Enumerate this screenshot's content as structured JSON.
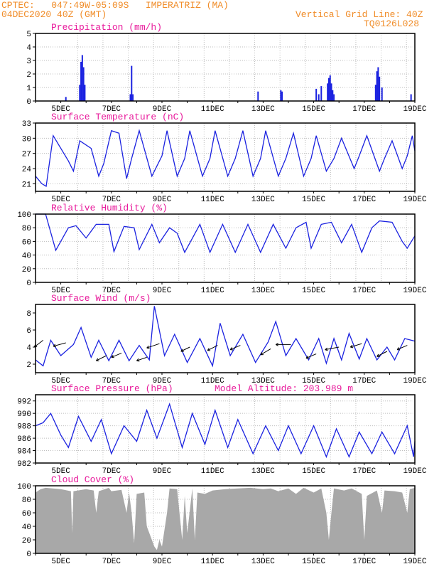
{
  "header": {
    "line1": "CPTEC:   047:49W-05:09S   IMPERATRIZ (MA)",
    "line2": "04DEC2020 40Z (GMT)",
    "grid_note": "Vertical Grid Line: 40Z",
    "code": "TQ0126L028"
  },
  "colors": {
    "header": "#f08c28",
    "title": "#e8199b",
    "series": "#1b22e0",
    "cloud": "#a8a8a8",
    "grid": "#bdbdbd"
  },
  "x_ticks": [
    "5DEC",
    "7DEC",
    "9DEC",
    "11DEC",
    "13DEC",
    "15DEC",
    "17DEC",
    "19DEC"
  ],
  "chart_data": [
    {
      "type": "bar",
      "title": "Precipitation (mm/h)",
      "x_unit": "day of December 2020",
      "xlim": [
        4.0,
        19.0
      ],
      "ylim": [
        0,
        5
      ],
      "yticks": [
        0,
        1,
        2,
        3,
        4,
        5
      ],
      "grid": true,
      "points": [
        [
          5.2,
          0.3
        ],
        [
          5.75,
          1.2
        ],
        [
          5.8,
          2.9
        ],
        [
          5.85,
          3.4
        ],
        [
          5.9,
          2.5
        ],
        [
          5.95,
          1.2
        ],
        [
          7.75,
          0.5
        ],
        [
          7.8,
          2.6
        ],
        [
          7.85,
          0.5
        ],
        [
          12.8,
          0.7
        ],
        [
          13.7,
          0.8
        ],
        [
          13.75,
          0.7
        ],
        [
          15.1,
          0.9
        ],
        [
          15.2,
          0.5
        ],
        [
          15.3,
          1.1
        ],
        [
          15.55,
          1.3
        ],
        [
          15.6,
          1.7
        ],
        [
          15.65,
          1.9
        ],
        [
          15.7,
          1.3
        ],
        [
          15.75,
          0.8
        ],
        [
          15.8,
          0.5
        ],
        [
          17.45,
          1.2
        ],
        [
          17.5,
          2.2
        ],
        [
          17.55,
          2.5
        ],
        [
          17.6,
          1.8
        ],
        [
          17.7,
          1.0
        ],
        [
          18.85,
          0.5
        ]
      ]
    },
    {
      "type": "line",
      "title": "Surface Temperature (nC)",
      "x_unit": "day of December 2020",
      "xlim": [
        4.0,
        19.0
      ],
      "ylim": [
        19.5,
        33
      ],
      "yticks": [
        21,
        24,
        27,
        30,
        33
      ],
      "grid": true,
      "points": [
        [
          4.0,
          22.5
        ],
        [
          4.25,
          21.0
        ],
        [
          4.42,
          20.5
        ],
        [
          4.7,
          30.5
        ],
        [
          5.3,
          25.5
        ],
        [
          5.5,
          23.5
        ],
        [
          5.75,
          29.5
        ],
        [
          6.2,
          28.0
        ],
        [
          6.5,
          22.5
        ],
        [
          6.7,
          25.0
        ],
        [
          7.0,
          31.5
        ],
        [
          7.3,
          31.0
        ],
        [
          7.6,
          22.0
        ],
        [
          7.8,
          26.0
        ],
        [
          8.1,
          31.5
        ],
        [
          8.6,
          22.5
        ],
        [
          9.0,
          26.5
        ],
        [
          9.2,
          31.5
        ],
        [
          9.6,
          22.5
        ],
        [
          9.9,
          26.0
        ],
        [
          10.1,
          31.5
        ],
        [
          10.6,
          22.5
        ],
        [
          10.9,
          26.0
        ],
        [
          11.1,
          31.5
        ],
        [
          11.6,
          22.5
        ],
        [
          11.9,
          26.0
        ],
        [
          12.2,
          31.5
        ],
        [
          12.6,
          22.5
        ],
        [
          12.9,
          26.0
        ],
        [
          13.1,
          31.5
        ],
        [
          13.6,
          22.5
        ],
        [
          13.9,
          26.0
        ],
        [
          14.2,
          31.0
        ],
        [
          14.6,
          22.5
        ],
        [
          14.9,
          26.0
        ],
        [
          15.1,
          30.5
        ],
        [
          15.5,
          23.5
        ],
        [
          15.8,
          26.0
        ],
        [
          16.1,
          30.0
        ],
        [
          16.6,
          24.0
        ],
        [
          16.8,
          26.5
        ],
        [
          17.1,
          30.5
        ],
        [
          17.6,
          23.5
        ],
        [
          17.8,
          26.0
        ],
        [
          18.1,
          29.5
        ],
        [
          18.5,
          24.0
        ],
        [
          18.7,
          26.5
        ],
        [
          18.9,
          30.5
        ],
        [
          19.0,
          27.5
        ]
      ]
    },
    {
      "type": "line",
      "title": "Relative Humidity (%)",
      "x_unit": "day of December 2020",
      "xlim": [
        4.0,
        19.0
      ],
      "ylim": [
        0,
        100
      ],
      "yticks": [
        0,
        20,
        40,
        60,
        80,
        100
      ],
      "grid": true,
      "points": [
        [
          4.0,
          100
        ],
        [
          4.4,
          100
        ],
        [
          4.8,
          47
        ],
        [
          5.3,
          80
        ],
        [
          5.6,
          83
        ],
        [
          6.0,
          65
        ],
        [
          6.4,
          85
        ],
        [
          6.9,
          85
        ],
        [
          7.1,
          45
        ],
        [
          7.5,
          82
        ],
        [
          7.9,
          80
        ],
        [
          8.1,
          48
        ],
        [
          8.6,
          85
        ],
        [
          8.9,
          58
        ],
        [
          9.3,
          80
        ],
        [
          9.6,
          72
        ],
        [
          9.9,
          44
        ],
        [
          10.5,
          85
        ],
        [
          10.9,
          44
        ],
        [
          11.4,
          85
        ],
        [
          11.9,
          44
        ],
        [
          12.4,
          85
        ],
        [
          12.9,
          44
        ],
        [
          13.4,
          85
        ],
        [
          13.9,
          50
        ],
        [
          14.3,
          80
        ],
        [
          14.7,
          88
        ],
        [
          14.9,
          50
        ],
        [
          15.3,
          85
        ],
        [
          15.7,
          88
        ],
        [
          16.1,
          58
        ],
        [
          16.5,
          85
        ],
        [
          16.9,
          44
        ],
        [
          17.3,
          80
        ],
        [
          17.6,
          90
        ],
        [
          18.1,
          88
        ],
        [
          18.5,
          60
        ],
        [
          18.7,
          50
        ],
        [
          19.0,
          68
        ]
      ]
    },
    {
      "type": "line",
      "title": "Surface Wind (m/s)",
      "x_unit": "day of December 2020",
      "xlim": [
        4.0,
        19.0
      ],
      "ylim": [
        1,
        9
      ],
      "yticks": [
        2,
        4,
        6,
        8
      ],
      "grid": false,
      "points": [
        [
          4.0,
          2.5
        ],
        [
          4.3,
          1.8
        ],
        [
          4.6,
          4.8
        ],
        [
          5.0,
          3.0
        ],
        [
          5.5,
          4.3
        ],
        [
          5.8,
          6.3
        ],
        [
          6.2,
          2.8
        ],
        [
          6.5,
          4.8
        ],
        [
          6.9,
          2.4
        ],
        [
          7.3,
          4.8
        ],
        [
          7.7,
          2.4
        ],
        [
          8.1,
          4.2
        ],
        [
          8.5,
          2.5
        ],
        [
          8.7,
          8.8
        ],
        [
          9.1,
          3.0
        ],
        [
          9.5,
          5.5
        ],
        [
          10.0,
          2.2
        ],
        [
          10.5,
          5.0
        ],
        [
          11.0,
          1.8
        ],
        [
          11.3,
          6.8
        ],
        [
          11.7,
          3.0
        ],
        [
          12.2,
          5.5
        ],
        [
          12.7,
          2.2
        ],
        [
          13.2,
          4.6
        ],
        [
          13.5,
          7.0
        ],
        [
          13.9,
          3.0
        ],
        [
          14.3,
          5.0
        ],
        [
          14.8,
          2.5
        ],
        [
          15.2,
          5.0
        ],
        [
          15.5,
          2.1
        ],
        [
          15.8,
          5.0
        ],
        [
          16.1,
          2.5
        ],
        [
          16.4,
          5.6
        ],
        [
          16.8,
          2.6
        ],
        [
          17.1,
          5.0
        ],
        [
          17.5,
          2.5
        ],
        [
          17.9,
          4.0
        ],
        [
          18.2,
          2.5
        ],
        [
          18.6,
          5.0
        ],
        [
          19.0,
          4.7
        ]
      ],
      "arrows": [
        [
          4.3,
          4.8,
          -0.35,
          -0.8
        ],
        [
          5.2,
          4.5,
          -0.5,
          -0.4
        ],
        [
          6.8,
          3.0,
          -0.4,
          -0.6
        ],
        [
          7.4,
          3.3,
          -0.4,
          -0.5
        ],
        [
          8.4,
          2.8,
          -0.4,
          -0.4
        ],
        [
          8.9,
          4.4,
          -0.5,
          -0.5
        ],
        [
          10.1,
          4.0,
          -0.35,
          -0.5
        ],
        [
          11.2,
          4.2,
          -0.4,
          -0.6
        ],
        [
          12.1,
          4.2,
          -0.4,
          -0.5
        ],
        [
          13.3,
          3.8,
          -0.4,
          -0.7
        ],
        [
          14.1,
          4.3,
          -0.6,
          0.0
        ],
        [
          15.1,
          3.2,
          -0.4,
          -0.5
        ],
        [
          16.0,
          4.0,
          -0.55,
          -0.3
        ],
        [
          16.9,
          4.4,
          -0.45,
          -0.4
        ],
        [
          17.9,
          3.5,
          -0.4,
          -0.6
        ],
        [
          18.7,
          4.2,
          -0.4,
          -0.5
        ]
      ]
    },
    {
      "type": "line",
      "title": "Surface Pressure (hPa)",
      "annotation": "Model Altitude: 203.989 m",
      "x_unit": "day of December 2020",
      "xlim": [
        4.0,
        19.0
      ],
      "ylim": [
        982,
        993
      ],
      "yticks": [
        982,
        984,
        986,
        988,
        990,
        992
      ],
      "grid": true,
      "points": [
        [
          4.0,
          988.0
        ],
        [
          4.3,
          988.5
        ],
        [
          4.6,
          990.0
        ],
        [
          5.0,
          986.5
        ],
        [
          5.3,
          984.5
        ],
        [
          5.7,
          989.5
        ],
        [
          6.2,
          985.5
        ],
        [
          6.6,
          989.0
        ],
        [
          7.0,
          983.5
        ],
        [
          7.5,
          988.0
        ],
        [
          8.0,
          985.5
        ],
        [
          8.4,
          990.5
        ],
        [
          8.8,
          986.0
        ],
        [
          9.3,
          991.5
        ],
        [
          9.8,
          984.5
        ],
        [
          10.2,
          990.0
        ],
        [
          10.7,
          985.0
        ],
        [
          11.1,
          990.5
        ],
        [
          11.6,
          984.5
        ],
        [
          12.0,
          989.0
        ],
        [
          12.6,
          983.5
        ],
        [
          13.1,
          988.0
        ],
        [
          13.6,
          984.0
        ],
        [
          14.0,
          988.0
        ],
        [
          14.5,
          983.5
        ],
        [
          15.0,
          988.0
        ],
        [
          15.5,
          983.0
        ],
        [
          15.9,
          987.5
        ],
        [
          16.4,
          983.0
        ],
        [
          16.8,
          987.0
        ],
        [
          17.3,
          983.5
        ],
        [
          17.7,
          987.0
        ],
        [
          18.2,
          983.5
        ],
        [
          18.7,
          988.0
        ],
        [
          18.95,
          983.0
        ],
        [
          19.0,
          985.5
        ]
      ]
    },
    {
      "type": "area",
      "title": "Cloud Cover (%)",
      "x_unit": "day of December 2020",
      "xlim": [
        4.0,
        19.0
      ],
      "ylim": [
        0,
        100
      ],
      "yticks": [
        0,
        20,
        40,
        60,
        80,
        100
      ],
      "grid": true,
      "points": [
        [
          4.0,
          90
        ],
        [
          4.2,
          95
        ],
        [
          4.4,
          97
        ],
        [
          5.0,
          95
        ],
        [
          5.4,
          92
        ],
        [
          5.45,
          30
        ],
        [
          5.5,
          92
        ],
        [
          6.0,
          95
        ],
        [
          6.3,
          93
        ],
        [
          6.4,
          60
        ],
        [
          6.5,
          92
        ],
        [
          6.9,
          97
        ],
        [
          7.0,
          92
        ],
        [
          7.4,
          94
        ],
        [
          7.6,
          60
        ],
        [
          7.7,
          90
        ],
        [
          7.8,
          60
        ],
        [
          7.9,
          15
        ],
        [
          8.0,
          88
        ],
        [
          8.3,
          90
        ],
        [
          8.4,
          40
        ],
        [
          8.5,
          30
        ],
        [
          8.7,
          10
        ],
        [
          8.8,
          5
        ],
        [
          8.9,
          20
        ],
        [
          9.0,
          10
        ],
        [
          9.2,
          60
        ],
        [
          9.3,
          96
        ],
        [
          9.6,
          95
        ],
        [
          9.8,
          20
        ],
        [
          9.9,
          85
        ],
        [
          10.0,
          30
        ],
        [
          10.2,
          96
        ],
        [
          10.3,
          20
        ],
        [
          10.4,
          90
        ],
        [
          10.7,
          88
        ],
        [
          11.0,
          93
        ],
        [
          11.5,
          95
        ],
        [
          12.0,
          96
        ],
        [
          12.5,
          97
        ],
        [
          13.0,
          95
        ],
        [
          13.3,
          96
        ],
        [
          13.6,
          92
        ],
        [
          14.0,
          96
        ],
        [
          14.3,
          88
        ],
        [
          14.6,
          97
        ],
        [
          15.0,
          90
        ],
        [
          15.3,
          96
        ],
        [
          15.5,
          60
        ],
        [
          15.6,
          20
        ],
        [
          15.7,
          60
        ],
        [
          15.8,
          96
        ],
        [
          16.2,
          93
        ],
        [
          16.5,
          96
        ],
        [
          16.9,
          88
        ],
        [
          17.0,
          20
        ],
        [
          17.1,
          85
        ],
        [
          17.5,
          93
        ],
        [
          17.7,
          60
        ],
        [
          17.8,
          93
        ],
        [
          18.2,
          92
        ],
        [
          18.5,
          90
        ],
        [
          18.7,
          60
        ],
        [
          18.8,
          95
        ],
        [
          19.0,
          97
        ]
      ]
    }
  ]
}
